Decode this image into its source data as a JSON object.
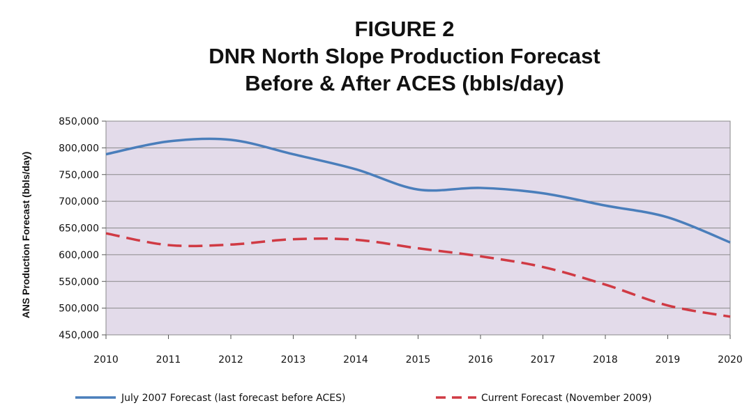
{
  "chart_data": {
    "type": "line",
    "title_lines": [
      "FIGURE 2",
      "DNR North Slope Production Forecast",
      "Before & After ACES (bbls/day)"
    ],
    "xlabel": "",
    "ylabel": "ANS Production Forecast (bbls/day)",
    "x": [
      2010,
      2011,
      2012,
      2013,
      2014,
      2015,
      2016,
      2017,
      2018,
      2019,
      2020
    ],
    "x_tick_labels": [
      "2010",
      "2011",
      "2012",
      "2013",
      "2014",
      "2015",
      "2016",
      "2017",
      "2018",
      "2019",
      "2020"
    ],
    "ylim": [
      450000,
      850000
    ],
    "y_tick_labels": [
      "450,000",
      "500,000",
      "550,000",
      "600,000",
      "650,000",
      "700,000",
      "750,000",
      "800,000",
      "850,000"
    ],
    "grid": true,
    "legend_position": "bottom",
    "series": [
      {
        "name": "July 2007 Forecast (last forecast before ACES)",
        "color": "#4a7ebb",
        "style": "solid",
        "values": [
          788000,
          812000,
          815000,
          788000,
          760000,
          722000,
          725000,
          715000,
          692000,
          670000,
          623000
        ]
      },
      {
        "name": "Current Forecast (November 2009)",
        "color": "#d03a44",
        "style": "dashed",
        "values": [
          640000,
          618000,
          619000,
          629000,
          628000,
          612000,
          597000,
          577000,
          544000,
          505000,
          484000
        ]
      }
    ]
  },
  "colors": {
    "plot_background": "#e3dbea",
    "gridline": "#8a8a8a"
  }
}
